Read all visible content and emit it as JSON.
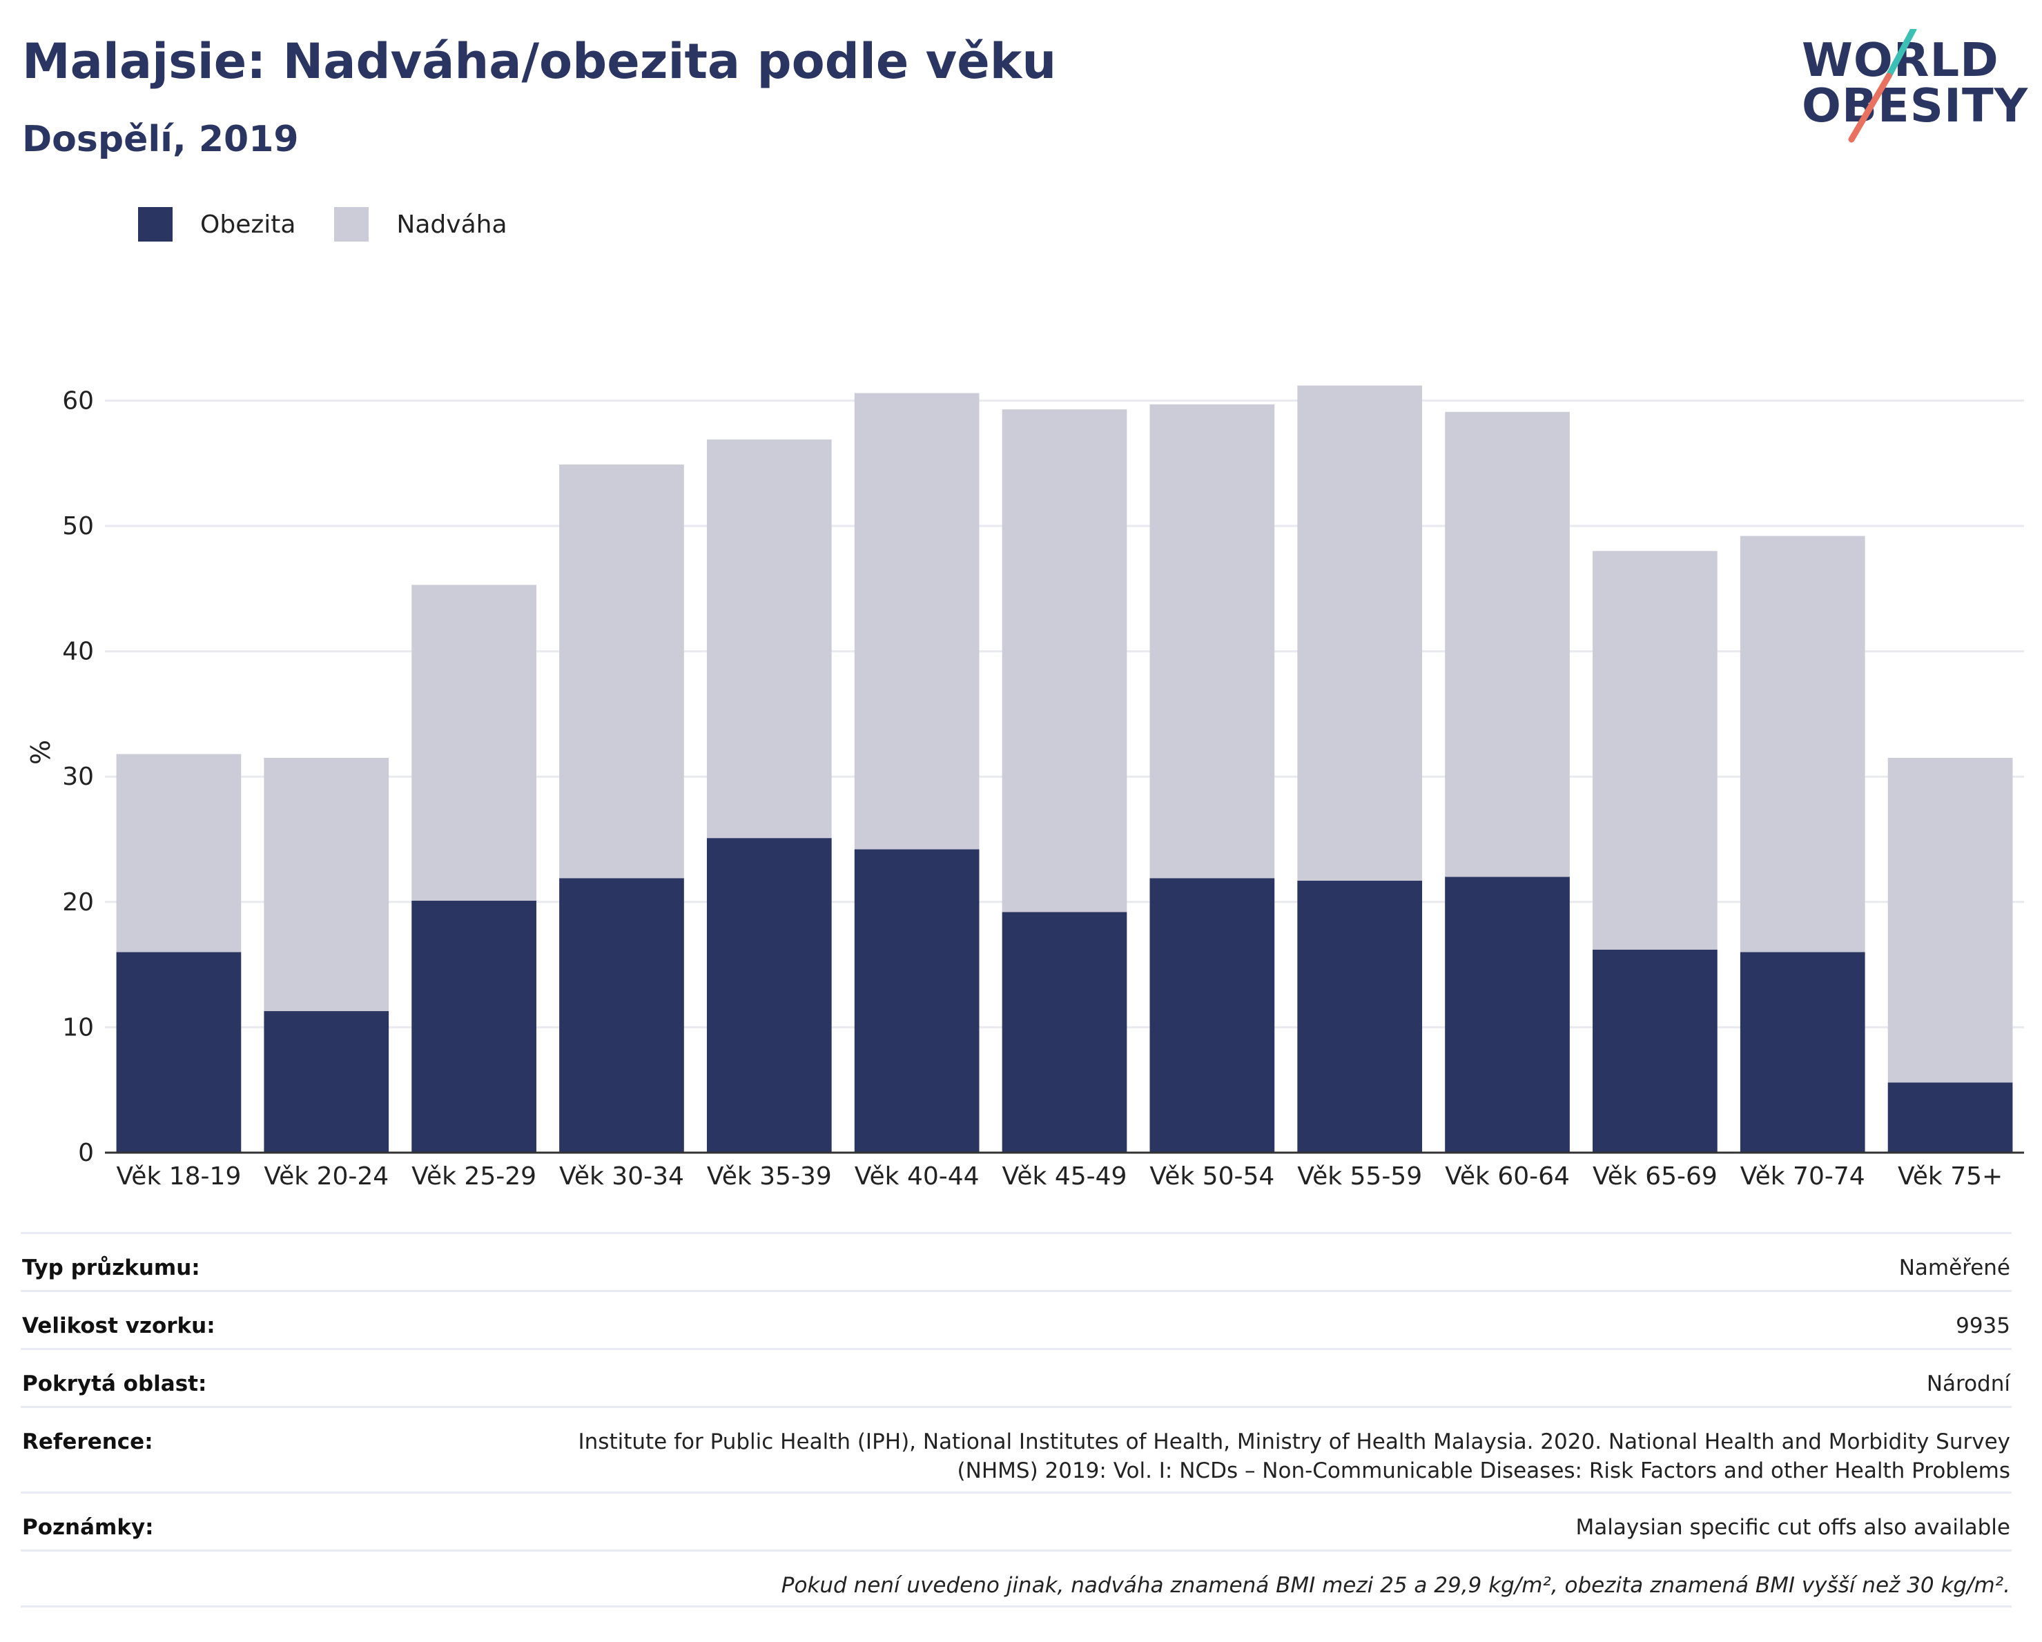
{
  "header": {
    "title": "Malajsie: Nadváha/obezita podle věku",
    "subtitle": "Dospělí, 2019"
  },
  "logo": {
    "line1": "WORLD",
    "line2": "OBESITY",
    "colors": {
      "text": "#2a3562",
      "accent_teal": "#3cbfb4",
      "accent_coral": "#e8725f"
    }
  },
  "legend": [
    {
      "label": "Obezita",
      "color": "#2a3562"
    },
    {
      "label": "Nadváha",
      "color": "#cbccd8"
    }
  ],
  "chart_data": {
    "type": "bar",
    "stacked": true,
    "categories": [
      "Věk 18-19",
      "Věk 20-24",
      "Věk 25-29",
      "Věk 30-34",
      "Věk 35-39",
      "Věk 40-44",
      "Věk 45-49",
      "Věk 50-54",
      "Věk 55-59",
      "Věk 60-64",
      "Věk 65-69",
      "Věk 70-74",
      "Věk 75+"
    ],
    "series": [
      {
        "name": "Obezita",
        "color": "#2a3562",
        "values": [
          16.0,
          11.3,
          20.1,
          21.9,
          25.1,
          24.2,
          19.2,
          21.9,
          21.7,
          22.0,
          16.2,
          16.0,
          5.6
        ]
      },
      {
        "name": "Nadváha",
        "color": "#cbccd8",
        "values": [
          15.8,
          20.2,
          25.2,
          33.0,
          31.8,
          36.4,
          40.1,
          37.8,
          39.5,
          37.1,
          31.8,
          33.2,
          25.9
        ]
      }
    ],
    "ylabel": "%",
    "ylim": [
      0,
      65
    ],
    "yticks": [
      0,
      10,
      20,
      30,
      40,
      50,
      60
    ],
    "grid": true,
    "legend_position": "top-left"
  },
  "info": {
    "rows": [
      {
        "label": "Typ průzkumu:",
        "value": "Naměřené"
      },
      {
        "label": "Velikost vzorku:",
        "value": "9935"
      },
      {
        "label": "Pokrytá oblast:",
        "value": "Národní"
      },
      {
        "label": "Reference:",
        "value": "Institute for Public Health (IPH), National Institutes of Health, Ministry of Health Malaysia. 2020. National Health and Morbidity Survey\n(NHMS) 2019: Vol. I: NCDs – Non-Communicable Diseases: Risk Factors and other Health Problems"
      },
      {
        "label": "Poznámky:",
        "value": "Malaysian specific cut offs also available"
      }
    ],
    "footnote": "Pokud není uvedeno jinak, nadváha znamená BMI mezi 25 a 29,9 kg/m², obezita znamená BMI vyšší než 30 kg/m²."
  }
}
